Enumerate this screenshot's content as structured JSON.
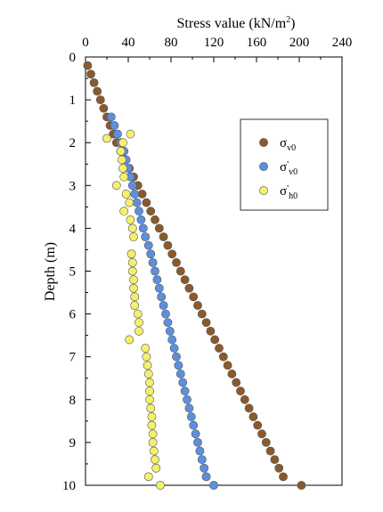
{
  "chart_data": {
    "type": "scatter",
    "xlabel": "Stress value  (kN/m²)",
    "xlabel_main": "Stress value  (kN/m",
    "xlabel_sup": "2",
    "xlabel_tail": ")",
    "ylabel": "Depth (m)",
    "xlim": [
      0,
      240
    ],
    "ylim": [
      0,
      10
    ],
    "x_axis_position": "top",
    "y_axis_inverted": true,
    "grid": false,
    "x_ticks": [
      "0",
      "40",
      "80",
      "120",
      "160",
      "200",
      "240"
    ],
    "y_ticks": [
      "0",
      "1",
      "2",
      "3",
      "4",
      "5",
      "6",
      "7",
      "8",
      "9",
      "10"
    ],
    "legend": {
      "placement": "right",
      "entries": [
        {
          "symbol": "σ",
          "prime": "",
          "sub": "v0"
        },
        {
          "symbol": "σ",
          "prime": "'",
          "sub": "v0"
        },
        {
          "symbol": "σ",
          "prime": "'",
          "sub": "h0"
        }
      ]
    },
    "series": [
      {
        "name": "σv0",
        "color": "#8B5A2B",
        "points": [
          [
            2,
            0.2
          ],
          [
            5,
            0.4
          ],
          [
            8,
            0.6
          ],
          [
            11,
            0.8
          ],
          [
            14,
            1.0
          ],
          [
            17,
            1.2
          ],
          [
            20,
            1.4
          ],
          [
            23,
            1.6
          ],
          [
            26,
            1.8
          ],
          [
            29,
            2.0
          ],
          [
            33,
            2.2
          ],
          [
            37,
            2.4
          ],
          [
            41,
            2.6
          ],
          [
            45,
            2.8
          ],
          [
            49,
            3.0
          ],
          [
            53,
            3.2
          ],
          [
            57,
            3.4
          ],
          [
            61,
            3.6
          ],
          [
            65,
            3.8
          ],
          [
            69,
            4.0
          ],
          [
            73,
            4.2
          ],
          [
            77,
            4.4
          ],
          [
            81,
            4.6
          ],
          [
            85,
            4.8
          ],
          [
            89,
            5.0
          ],
          [
            93,
            5.2
          ],
          [
            97,
            5.4
          ],
          [
            101,
            5.6
          ],
          [
            105,
            5.8
          ],
          [
            109,
            6.0
          ],
          [
            113,
            6.2
          ],
          [
            117,
            6.4
          ],
          [
            121,
            6.6
          ],
          [
            125,
            6.8
          ],
          [
            129,
            7.0
          ],
          [
            133,
            7.2
          ],
          [
            137,
            7.4
          ],
          [
            141,
            7.6
          ],
          [
            145,
            7.8
          ],
          [
            149,
            8.0
          ],
          [
            153,
            8.2
          ],
          [
            157,
            8.4
          ],
          [
            161,
            8.6
          ],
          [
            165,
            8.8
          ],
          [
            169,
            9.0
          ],
          [
            173,
            9.2
          ],
          [
            177,
            9.4
          ],
          [
            181,
            9.6
          ],
          [
            185,
            9.8
          ],
          [
            202,
            10.0
          ]
        ]
      },
      {
        "name": "σ'v0",
        "color": "#5B8FE0",
        "points": [
          [
            24,
            1.4
          ],
          [
            27,
            1.6
          ],
          [
            30,
            1.8
          ],
          [
            33,
            2.0
          ],
          [
            36,
            2.2
          ],
          [
            38,
            2.4
          ],
          [
            40,
            2.6
          ],
          [
            42,
            2.8
          ],
          [
            44,
            3.0
          ],
          [
            46,
            3.2
          ],
          [
            48,
            3.4
          ],
          [
            50,
            3.6
          ],
          [
            52,
            3.8
          ],
          [
            54,
            4.0
          ],
          [
            56,
            4.2
          ],
          [
            59,
            4.4
          ],
          [
            61,
            4.6
          ],
          [
            63,
            4.8
          ],
          [
            65,
            5.0
          ],
          [
            67,
            5.2
          ],
          [
            69,
            5.4
          ],
          [
            71,
            5.6
          ],
          [
            73,
            5.8
          ],
          [
            75,
            6.0
          ],
          [
            77,
            6.2
          ],
          [
            79,
            6.4
          ],
          [
            81,
            6.6
          ],
          [
            83,
            6.8
          ],
          [
            85,
            7.0
          ],
          [
            87,
            7.2
          ],
          [
            89,
            7.4
          ],
          [
            91,
            7.6
          ],
          [
            93,
            7.8
          ],
          [
            95,
            8.0
          ],
          [
            97,
            8.2
          ],
          [
            99,
            8.4
          ],
          [
            101,
            8.6
          ],
          [
            103,
            8.8
          ],
          [
            105,
            9.0
          ],
          [
            107,
            9.2
          ],
          [
            109,
            9.4
          ],
          [
            111,
            9.6
          ],
          [
            113,
            9.8
          ],
          [
            120,
            10.0
          ]
        ]
      },
      {
        "name": "σ'h0",
        "color": "#F5F06A",
        "points": [
          [
            42,
            1.8
          ],
          [
            20,
            1.9
          ],
          [
            35,
            2.0
          ],
          [
            33,
            2.2
          ],
          [
            34,
            2.4
          ],
          [
            35,
            2.6
          ],
          [
            36,
            2.8
          ],
          [
            29,
            3.0
          ],
          [
            38,
            3.2
          ],
          [
            41,
            3.4
          ],
          [
            36,
            3.6
          ],
          [
            42,
            3.8
          ],
          [
            44,
            4.0
          ],
          [
            45,
            4.2
          ],
          [
            43,
            4.6
          ],
          [
            44,
            4.8
          ],
          [
            44,
            5.0
          ],
          [
            45,
            5.2
          ],
          [
            45,
            5.4
          ],
          [
            46,
            5.6
          ],
          [
            46,
            5.8
          ],
          [
            49,
            6.0
          ],
          [
            50,
            6.2
          ],
          [
            50,
            6.4
          ],
          [
            41,
            6.6
          ],
          [
            56,
            6.8
          ],
          [
            57,
            7.0
          ],
          [
            58,
            7.2
          ],
          [
            59,
            7.4
          ],
          [
            60,
            7.6
          ],
          [
            60,
            7.8
          ],
          [
            60,
            8.0
          ],
          [
            61,
            8.2
          ],
          [
            62,
            8.4
          ],
          [
            62,
            8.6
          ],
          [
            63,
            8.8
          ],
          [
            63,
            9.0
          ],
          [
            64,
            9.2
          ],
          [
            65,
            9.4
          ],
          [
            66,
            9.6
          ],
          [
            59,
            9.8
          ],
          [
            70,
            10.0
          ]
        ]
      }
    ]
  }
}
